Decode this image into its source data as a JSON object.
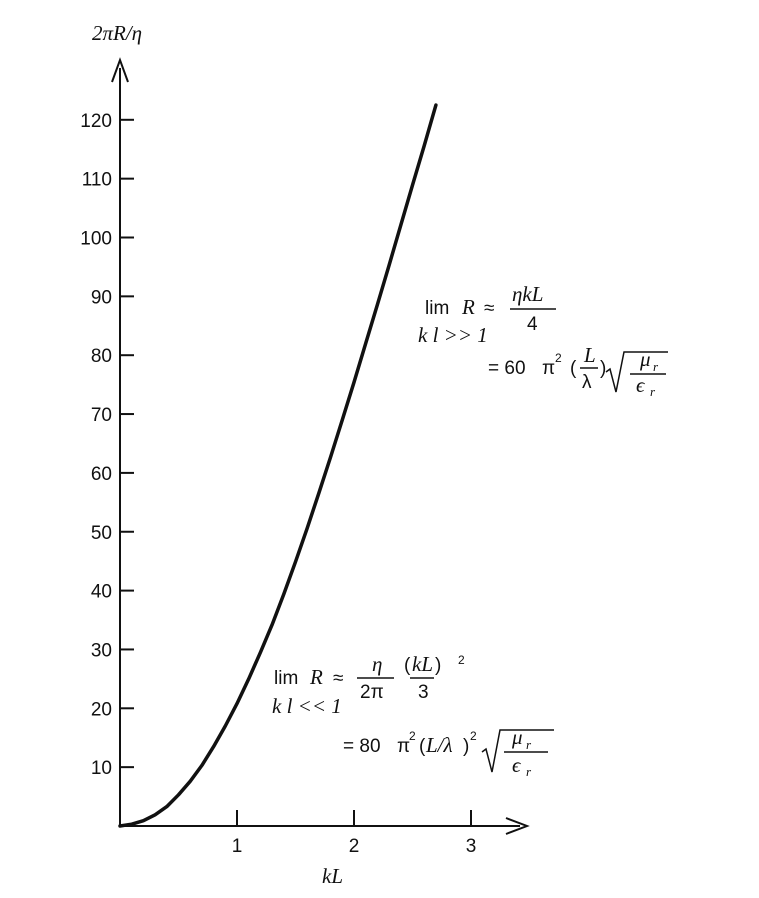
{
  "chart_data": {
    "type": "line",
    "title": "",
    "xlabel": "kL",
    "ylabel": "2πR/η",
    "xlim": [
      0,
      3.5
    ],
    "ylim": [
      0,
      130
    ],
    "x_ticks": [
      "1",
      "2",
      "3"
    ],
    "y_ticks": [
      "10",
      "20",
      "30",
      "40",
      "50",
      "60",
      "70",
      "80",
      "90",
      "100",
      "110",
      "120"
    ],
    "grid": false,
    "legend": "none",
    "series": [
      {
        "x": [
          0.0,
          0.1,
          0.2,
          0.3,
          0.4,
          0.5,
          0.6,
          0.7,
          0.8,
          0.9,
          1.0,
          1.1,
          1.2,
          1.3,
          1.4,
          1.5,
          1.6,
          1.7,
          1.8,
          1.9,
          2.0,
          2.1,
          2.2,
          2.3,
          2.4,
          2.5,
          2.6,
          2.7
        ],
        "y": [
          0.0,
          0.3,
          0.9,
          1.9,
          3.3,
          5.3,
          7.6,
          10.3,
          13.5,
          17.0,
          20.8,
          25.0,
          29.5,
          34.2,
          39.4,
          44.9,
          50.6,
          56.6,
          62.7,
          69.0,
          75.4,
          82.0,
          88.6,
          95.3,
          102.1,
          108.9,
          115.6,
          122.5
        ]
      }
    ],
    "annotations": {
      "large": {
        "lim": "lim",
        "R": "R",
        "approx": "≈",
        "frac_num": "ηkL",
        "frac_den": "4",
        "condition": "k l >> 1",
        "eq": "= 60",
        "pi": "π",
        "sq": "2",
        "L": "L",
        "lambda": "λ",
        "mu": "μ",
        "eps": "ϵ",
        "r": "r"
      },
      "small": {
        "lim": "lim",
        "R": "R",
        "approx": "≈",
        "frac1_num": "η",
        "frac1_den": "2π",
        "frac2_num": "kL",
        "frac2_den": "3",
        "sq": "2",
        "condition": "k l << 1",
        "eq": "= 80",
        "pi": "π",
        "L_over_lambda": "L/λ",
        "mu": "μ",
        "eps": "ϵ",
        "r": "r"
      }
    }
  }
}
